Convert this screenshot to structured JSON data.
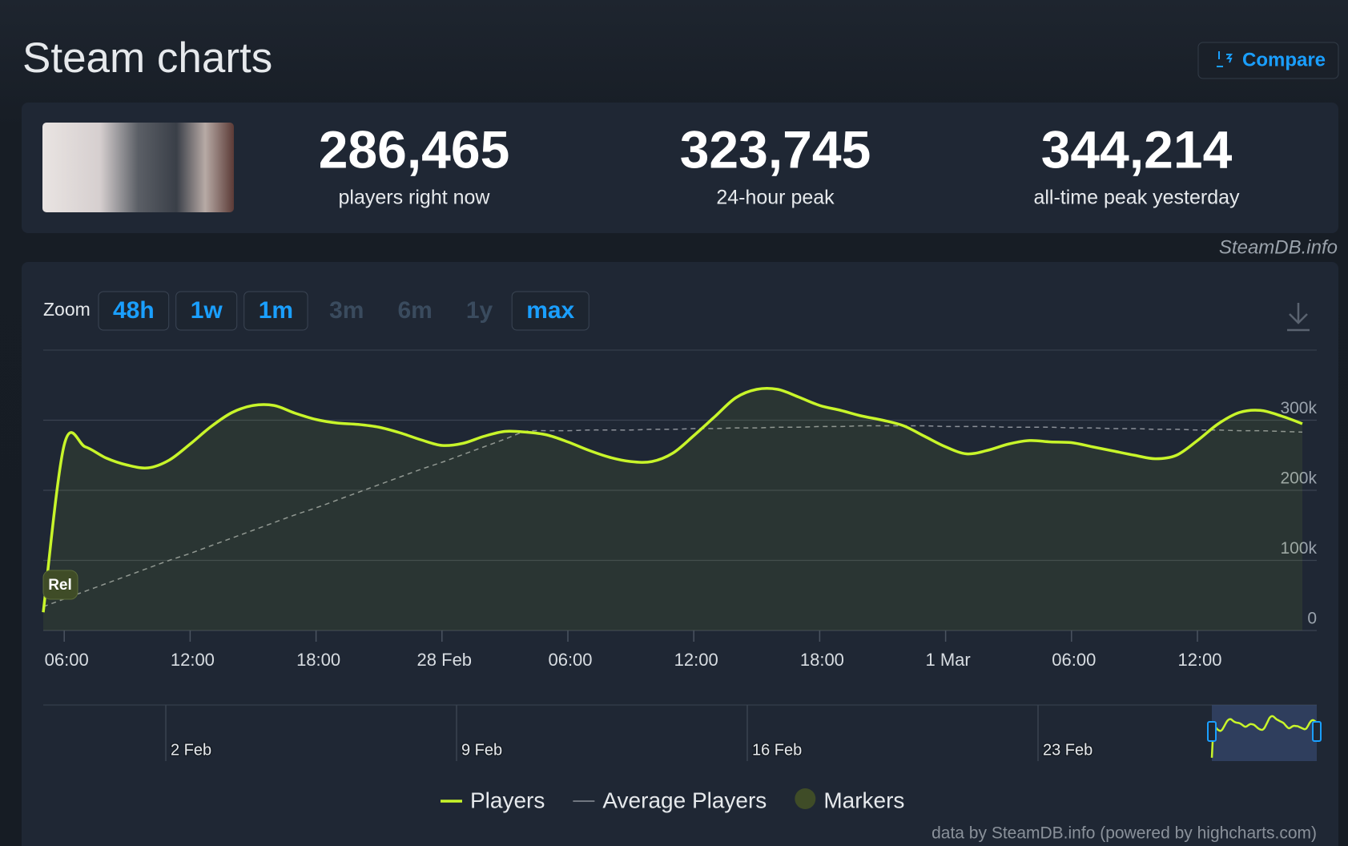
{
  "header": {
    "title": "Steam charts",
    "compare": "Compare"
  },
  "stats": [
    {
      "value": "286,465",
      "label": "players right now"
    },
    {
      "value": "323,745",
      "label": "24-hour peak"
    },
    {
      "value": "344,214",
      "label": "all-time peak yesterday"
    }
  ],
  "watermark": "SteamDB.info",
  "zoom": {
    "label": "Zoom",
    "options": [
      {
        "label": "48h",
        "enabled": true
      },
      {
        "label": "1w",
        "enabled": true
      },
      {
        "label": "1m",
        "enabled": true
      },
      {
        "label": "3m",
        "enabled": false
      },
      {
        "label": "6m",
        "enabled": false
      },
      {
        "label": "1y",
        "enabled": false
      },
      {
        "label": "max",
        "enabled": true
      }
    ]
  },
  "chart_data": {
    "type": "line",
    "x": [
      "27 Feb 05:00",
      "27 Feb 06:00",
      "27 Feb 07:00",
      "27 Feb 08:00",
      "27 Feb 09:00",
      "27 Feb 10:00",
      "27 Feb 11:00",
      "27 Feb 12:00",
      "27 Feb 13:00",
      "27 Feb 14:00",
      "27 Feb 15:00",
      "27 Feb 16:00",
      "27 Feb 17:00",
      "27 Feb 18:00",
      "27 Feb 19:00",
      "27 Feb 20:00",
      "27 Feb 21:00",
      "27 Feb 22:00",
      "27 Feb 23:00",
      "28 Feb 00:00",
      "28 Feb 01:00",
      "28 Feb 02:00",
      "28 Feb 03:00",
      "28 Feb 04:00",
      "28 Feb 05:00",
      "28 Feb 06:00",
      "28 Feb 07:00",
      "28 Feb 08:00",
      "28 Feb 09:00",
      "28 Feb 10:00",
      "28 Feb 11:00",
      "28 Feb 12:00",
      "28 Feb 13:00",
      "28 Feb 14:00",
      "28 Feb 15:00",
      "28 Feb 16:00",
      "28 Feb 17:00",
      "28 Feb 18:00",
      "28 Feb 19:00",
      "28 Feb 20:00",
      "28 Feb 21:00",
      "28 Feb 22:00",
      "28 Feb 23:00",
      "1 Mar 00:00",
      "1 Mar 01:00",
      "1 Mar 02:00",
      "1 Mar 03:00",
      "1 Mar 04:00",
      "1 Mar 05:00",
      "1 Mar 06:00",
      "1 Mar 07:00",
      "1 Mar 08:00",
      "1 Mar 09:00",
      "1 Mar 10:00",
      "1 Mar 11:00",
      "1 Mar 12:00",
      "1 Mar 13:00",
      "1 Mar 14:00",
      "1 Mar 15:00",
      "1 Mar 16:00",
      "1 Mar 17:00"
    ],
    "series": [
      {
        "name": "Players",
        "color": "#c8f52a",
        "style": "solid",
        "fill": true,
        "values": [
          26000,
          265000,
          262000,
          246000,
          236000,
          232000,
          243000,
          266000,
          291000,
          311000,
          321000,
          321000,
          310000,
          301000,
          296000,
          294000,
          290000,
          282000,
          272000,
          264000,
          267000,
          277000,
          284000,
          283000,
          279000,
          269000,
          257000,
          247000,
          241000,
          241000,
          253000,
          278000,
          305000,
          332000,
          344000,
          344000,
          333000,
          321000,
          314000,
          306000,
          300000,
          292000,
          277000,
          262000,
          252000,
          257000,
          266000,
          271000,
          269000,
          268000,
          262000,
          256000,
          250000,
          245000,
          250000,
          271000,
          295000,
          311000,
          314000,
          306000,
          295000
        ]
      },
      {
        "name": "Average Players",
        "color": "#8c9199",
        "style": "dashed",
        "fill": false,
        "values": [
          34000,
          45000,
          56000,
          67000,
          78000,
          89000,
          100000,
          110000,
          121000,
          132000,
          143000,
          154000,
          165000,
          175000,
          186000,
          197000,
          208000,
          219000,
          230000,
          240000,
          251000,
          262000,
          273000,
          284000,
          285000,
          285000,
          286000,
          286000,
          286000,
          287000,
          287000,
          288000,
          288000,
          289000,
          289000,
          290000,
          290000,
          291000,
          291000,
          292000,
          292000,
          292000,
          292000,
          291000,
          291000,
          291000,
          290000,
          290000,
          290000,
          289000,
          289000,
          288000,
          288000,
          287000,
          287000,
          286000,
          286000,
          285000,
          285000,
          284000,
          283000
        ]
      }
    ],
    "markers": {
      "name": "Markers",
      "color": "#3f4c27",
      "items": [
        {
          "x": "27 Feb 05:00",
          "label": "Rel"
        }
      ]
    },
    "ylim": [
      0,
      400000
    ],
    "yticks": [
      0,
      {
        "value": 100000,
        "label": "100k"
      },
      {
        "value": 200000,
        "label": "200k"
      },
      {
        "value": 300000,
        "label": "300k"
      }
    ],
    "xticks": [
      {
        "value": "27 Feb 06:00",
        "label": "06:00"
      },
      {
        "value": "27 Feb 12:00",
        "label": "12:00"
      },
      {
        "value": "27 Feb 18:00",
        "label": "18:00"
      },
      {
        "value": "28 Feb 00:00",
        "label": "28 Feb"
      },
      {
        "value": "28 Feb 06:00",
        "label": "06:00"
      },
      {
        "value": "28 Feb 12:00",
        "label": "12:00"
      },
      {
        "value": "28 Feb 18:00",
        "label": "18:00"
      },
      {
        "value": "1 Mar 00:00",
        "label": "1 Mar"
      },
      {
        "value": "1 Mar 06:00",
        "label": "06:00"
      },
      {
        "value": "1 Mar 12:00",
        "label": "12:00"
      }
    ],
    "grid": true
  },
  "navigator": {
    "labels": [
      "2 Feb",
      "9 Feb",
      "16 Feb",
      "23 Feb"
    ]
  },
  "credits": "data by SteamDB.info (powered by highcharts.com)"
}
